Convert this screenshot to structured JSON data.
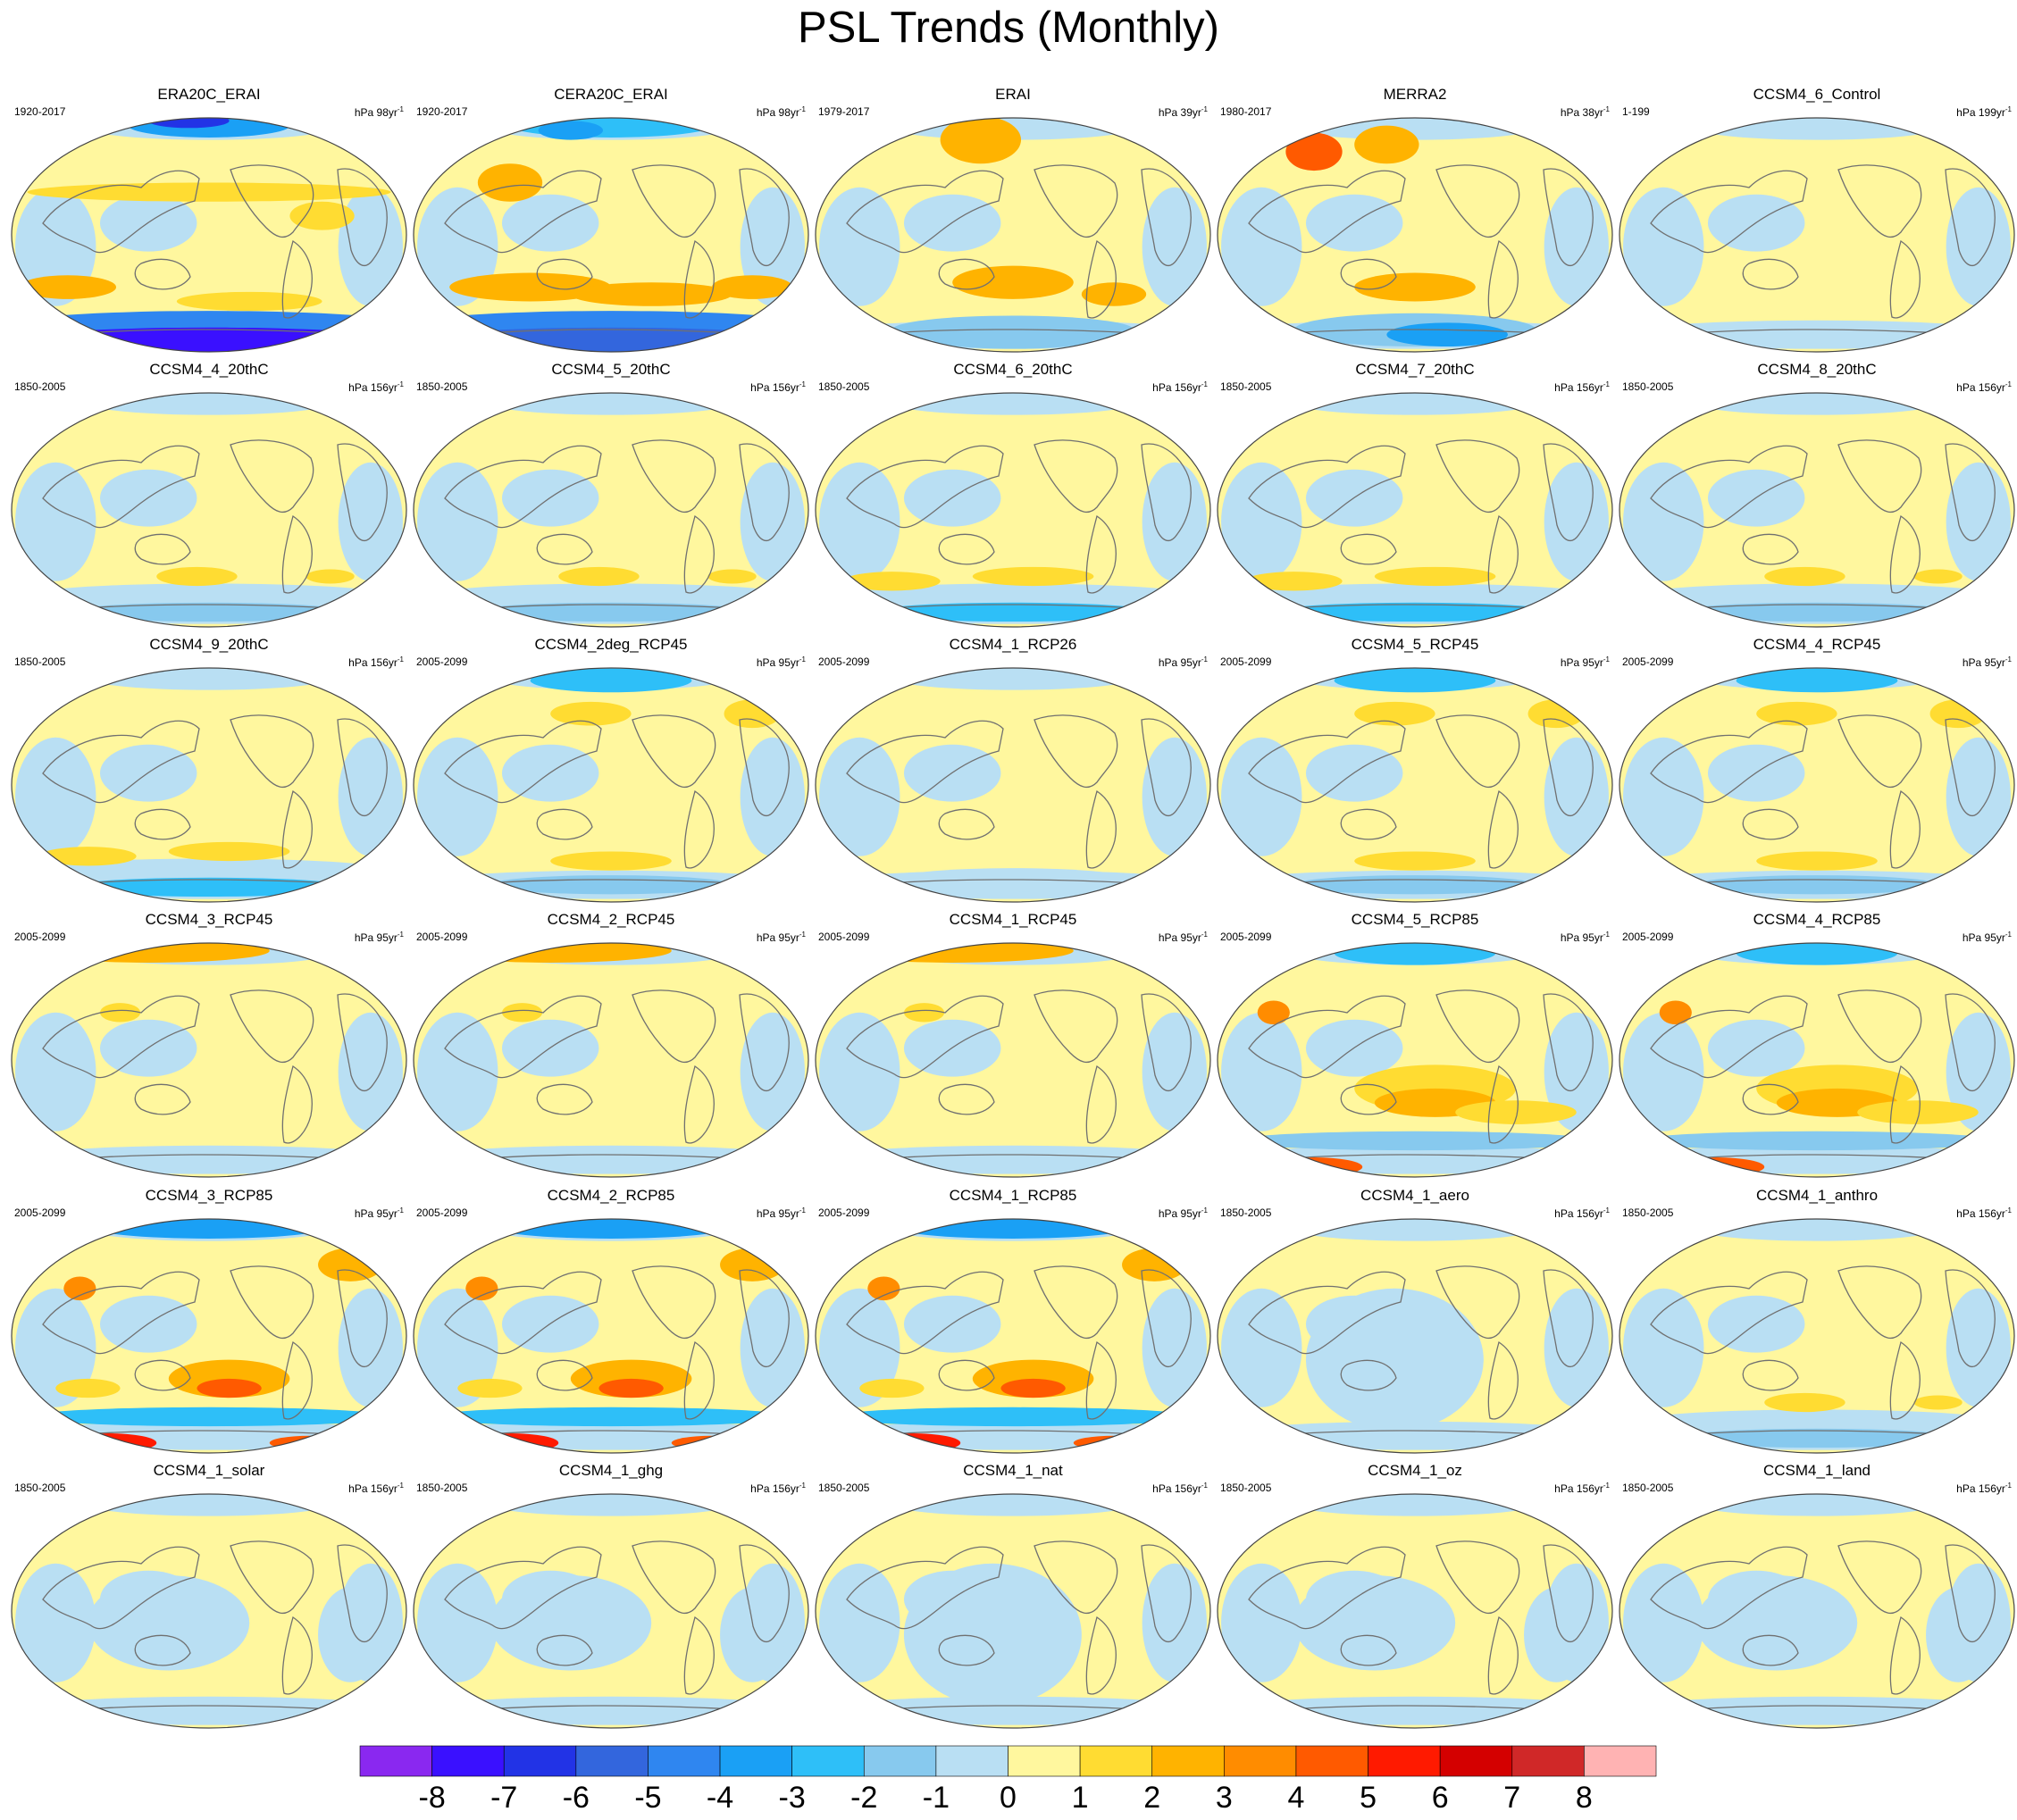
{
  "title": "PSL Trends (Monthly)",
  "colors": {
    "blue_neg": "#b9dff3",
    "yellow_pos": "#fff79e",
    "coastline": "#707070"
  },
  "chart_data": {
    "type": "contour-map-grid",
    "projection": "Robinson, Pacific-centered",
    "rows": 6,
    "cols": 5,
    "colorbar": {
      "labels": [
        "-8",
        "-7",
        "-6",
        "-5",
        "-4",
        "-3",
        "-2",
        "-1",
        "0",
        "1",
        "2",
        "3",
        "4",
        "5",
        "6",
        "7",
        "8"
      ],
      "colors": [
        "#8a28f0",
        "#3a10ff",
        "#2233e6",
        "#3366dd",
        "#2f86f0",
        "#1aa0f5",
        "#2ebff8",
        "#87c9ee",
        "#b9dff3",
        "#fff79e",
        "#ffdc32",
        "#ffb300",
        "#ff8c00",
        "#ff5a00",
        "#ff1a00",
        "#d40000",
        "#d02828",
        "#ffb3b3"
      ]
    },
    "panels": [
      {
        "title": "ERA20C_ERAI",
        "period": "1920-2017",
        "scale": "98",
        "pattern": "ERA20C"
      },
      {
        "title": "CERA20C_ERAI",
        "period": "1920-2017",
        "scale": "98",
        "pattern": "CERA"
      },
      {
        "title": "ERAI",
        "period": "1979-2017",
        "scale": "39",
        "pattern": "ERAI"
      },
      {
        "title": "MERRA2",
        "period": "1980-2017",
        "scale": "38",
        "pattern": "MERRA"
      },
      {
        "title": "CCSM4_6_Control",
        "period": "1-199",
        "scale": "199",
        "pattern": "control"
      },
      {
        "title": "CCSM4_4_20thC",
        "period": "1850-2005",
        "scale": "156",
        "pattern": "hist"
      },
      {
        "title": "CCSM4_5_20thC",
        "period": "1850-2005",
        "scale": "156",
        "pattern": "hist"
      },
      {
        "title": "CCSM4_6_20thC",
        "period": "1850-2005",
        "scale": "156",
        "pattern": "hist2"
      },
      {
        "title": "CCSM4_7_20thC",
        "period": "1850-2005",
        "scale": "156",
        "pattern": "hist2"
      },
      {
        "title": "CCSM4_8_20thC",
        "period": "1850-2005",
        "scale": "156",
        "pattern": "hist"
      },
      {
        "title": "CCSM4_9_20thC",
        "period": "1850-2005",
        "scale": "156",
        "pattern": "hist2"
      },
      {
        "title": "CCSM4_2deg_RCP45",
        "period": "2005-2099",
        "scale": "95",
        "pattern": "rcp45"
      },
      {
        "title": "CCSM4_1_RCP26",
        "period": "2005-2099",
        "scale": "95",
        "pattern": "rcp26"
      },
      {
        "title": "CCSM4_5_RCP45",
        "period": "2005-2099",
        "scale": "95",
        "pattern": "rcp45"
      },
      {
        "title": "CCSM4_4_RCP45",
        "period": "2005-2099",
        "scale": "95",
        "pattern": "rcp45"
      },
      {
        "title": "CCSM4_3_RCP45",
        "period": "2005-2099",
        "scale": "95",
        "pattern": "rcp45b"
      },
      {
        "title": "CCSM4_2_RCP45",
        "period": "2005-2099",
        "scale": "95",
        "pattern": "rcp45b"
      },
      {
        "title": "CCSM4_1_RCP45",
        "period": "2005-2099",
        "scale": "95",
        "pattern": "rcp45b"
      },
      {
        "title": "CCSM4_5_RCP85",
        "period": "2005-2099",
        "scale": "95",
        "pattern": "rcp85"
      },
      {
        "title": "CCSM4_4_RCP85",
        "period": "2005-2099",
        "scale": "95",
        "pattern": "rcp85"
      },
      {
        "title": "CCSM4_3_RCP85",
        "period": "2005-2099",
        "scale": "95",
        "pattern": "rcp85strong"
      },
      {
        "title": "CCSM4_2_RCP85",
        "period": "2005-2099",
        "scale": "95",
        "pattern": "rcp85strong"
      },
      {
        "title": "CCSM4_1_RCP85",
        "period": "2005-2099",
        "scale": "95",
        "pattern": "rcp85strong"
      },
      {
        "title": "CCSM4_1_aero",
        "period": "1850-2005",
        "scale": "156",
        "pattern": "aero"
      },
      {
        "title": "CCSM4_1_anthro",
        "period": "1850-2005",
        "scale": "156",
        "pattern": "hist"
      },
      {
        "title": "CCSM4_1_solar",
        "period": "1850-2005",
        "scale": "156",
        "pattern": "weak"
      },
      {
        "title": "CCSM4_1_ghg",
        "period": "1850-2005",
        "scale": "156",
        "pattern": "weak"
      },
      {
        "title": "CCSM4_1_nat",
        "period": "1850-2005",
        "scale": "156",
        "pattern": "aero"
      },
      {
        "title": "CCSM4_1_oz",
        "period": "1850-2005",
        "scale": "156",
        "pattern": "weak"
      },
      {
        "title": "CCSM4_1_land",
        "period": "1850-2005",
        "scale": "156",
        "pattern": "weak"
      }
    ]
  }
}
